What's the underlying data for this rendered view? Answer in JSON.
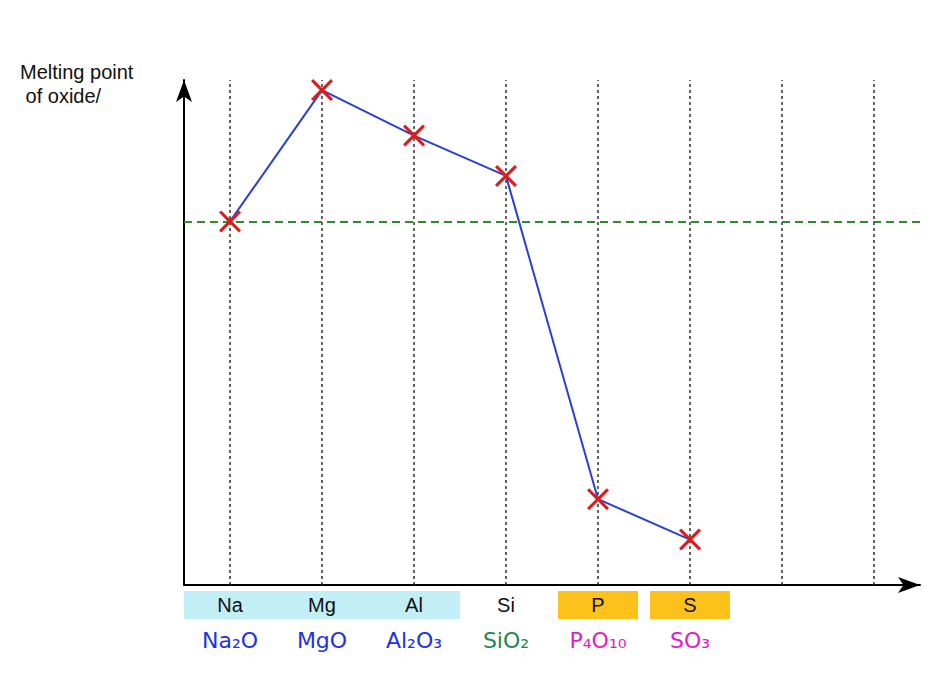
{
  "chart_data": {
    "type": "line",
    "y_label": "Melting point of oxide/",
    "categories": [
      "Na",
      "Mg",
      "Al",
      "Si",
      "P",
      "S",
      null,
      null
    ],
    "values": [
      72,
      98,
      89,
      81,
      17,
      9,
      null,
      null
    ],
    "color": "#2b3fd6",
    "marker": "x",
    "ylim": [
      0,
      100
    ],
    "tick_labels": "x",
    "grid": true,
    "reference_line": 72,
    "annotations": [
      {
        "text": "Na₂O",
        "color": "#2233e0"
      },
      {
        "text": "MgO",
        "color": "#2233e0"
      },
      {
        "text": "Al₂O₃",
        "color": "#2233e0"
      },
      {
        "text": "SiO₂",
        "color": "#1f8a4c"
      },
      {
        "text": "P₄O₁₀",
        "color": "#e020c8"
      },
      {
        "text": "SO₃",
        "color": "#e020c8"
      }
    ]
  }
}
